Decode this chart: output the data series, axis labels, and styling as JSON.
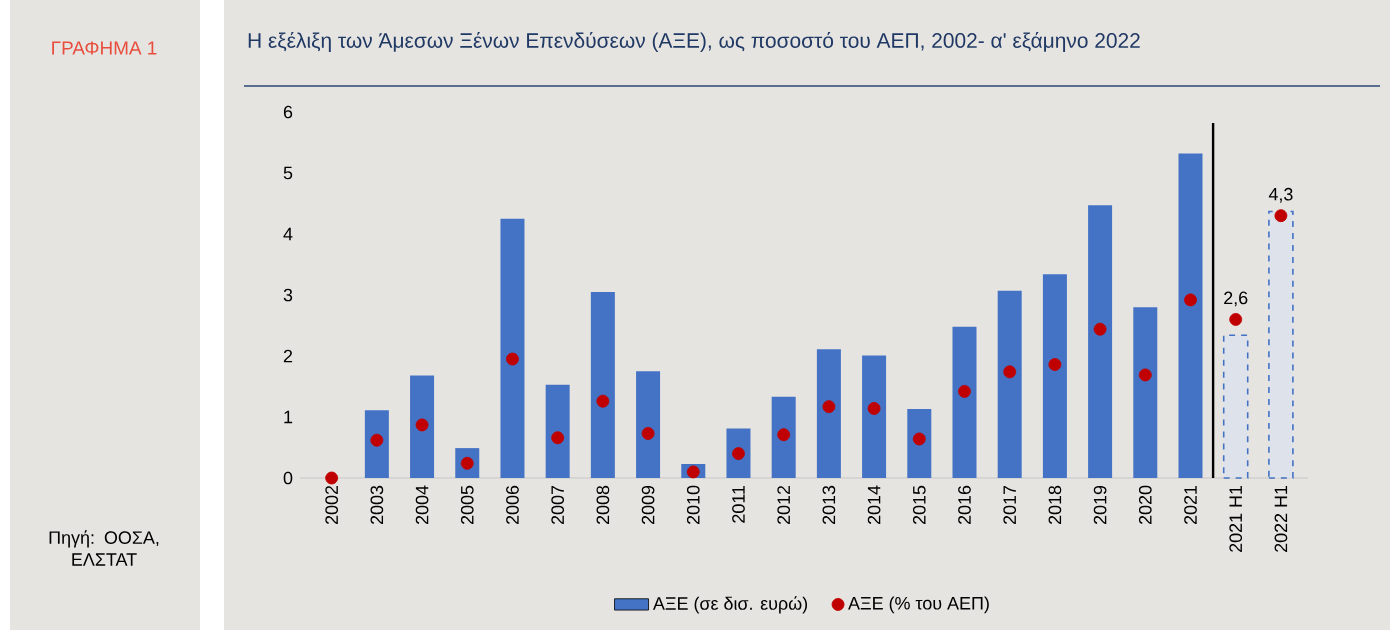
{
  "chart_data": {
    "type": "bar",
    "title": "Η εξέλιξη των Άμεσων Ξένων Επενδύσεων (ΑΞΕ), ως ποσοστό του ΑΕΠ, 2002- α' εξάμηνο 2022",
    "annotations": [
      "ΓΡΑΦΗΜΑ 1",
      "Πηγή: ΟΟΣΑ, ΕΛΣΤΑΤ"
    ],
    "categories": [
      "2002",
      "2003",
      "2004",
      "2005",
      "2006",
      "2007",
      "2008",
      "2009",
      "2010",
      "2011",
      "2012",
      "2013",
      "2014",
      "2015",
      "2016",
      "2017",
      "2018",
      "2019",
      "2020",
      "2021",
      "2021 H1",
      "2022 H1"
    ],
    "series": [
      {
        "name": "ΑΞΕ (σε δισ. ευρώ)",
        "color": "#4472c4",
        "values": [
          0,
          1.11,
          1.68,
          0.49,
          4.25,
          1.53,
          3.05,
          1.75,
          0.23,
          0.81,
          1.33,
          2.11,
          2.01,
          1.13,
          2.48,
          3.07,
          3.34,
          4.47,
          2.8,
          5.32,
          null,
          null
        ]
      },
      {
        "color": "#4472c4",
        "line_style": "dashed",
        "values": [
          null,
          null,
          null,
          null,
          null,
          null,
          null,
          null,
          null,
          null,
          null,
          null,
          null,
          null,
          null,
          null,
          null,
          null,
          null,
          null,
          2.34,
          4.37
        ]
      },
      {
        "name": "ΑΞΕ (% του ΑΕΠ)",
        "type": "scatter",
        "color": "#c00000",
        "values": [
          0,
          0.62,
          0.87,
          0.24,
          1.95,
          0.66,
          1.26,
          0.73,
          0.1,
          0.4,
          0.71,
          1.17,
          1.14,
          0.64,
          1.42,
          1.74,
          1.86,
          2.44,
          1.69,
          2.92,
          2.6,
          4.3
        ],
        "value_labels": [
          null,
          null,
          null,
          null,
          null,
          null,
          null,
          null,
          null,
          null,
          null,
          null,
          null,
          null,
          null,
          null,
          null,
          null,
          null,
          null,
          "2,6",
          "4,3"
        ]
      }
    ],
    "ylim": [
      0,
      6
    ],
    "yticks": [
      0,
      1,
      2,
      3,
      4,
      5,
      6
    ],
    "legend": "bottom",
    "marker": "circle"
  }
}
